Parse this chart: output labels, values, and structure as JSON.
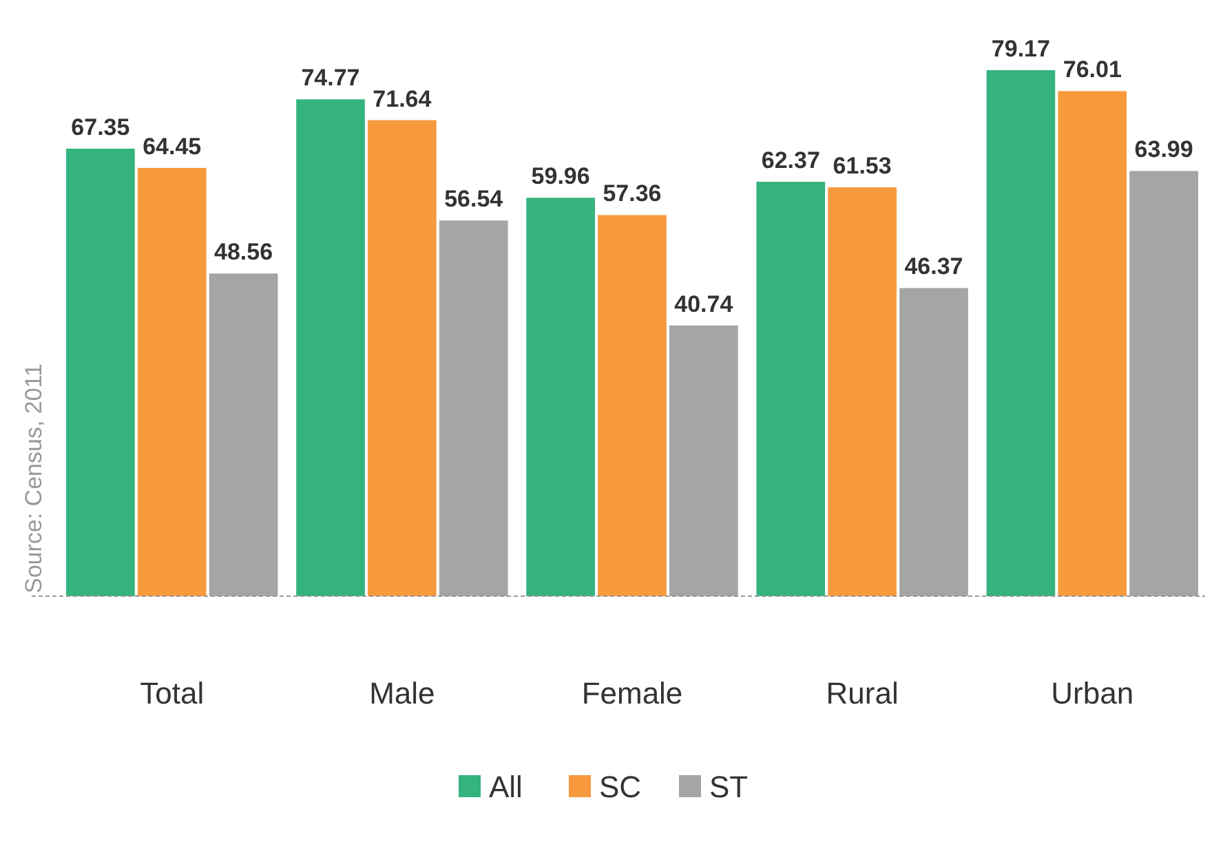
{
  "chart_data": {
    "type": "bar",
    "categories": [
      "Total",
      "Male",
      "Female",
      "Rural",
      "Urban"
    ],
    "series": [
      {
        "name": "All",
        "color": "#35b37e",
        "values": [
          67.35,
          74.77,
          59.96,
          62.37,
          79.17
        ]
      },
      {
        "name": "SC",
        "color": "#f79a3e",
        "values": [
          64.45,
          71.64,
          57.36,
          61.53,
          76.01
        ]
      },
      {
        "name": "ST",
        "color": "#a5a5a5",
        "values": [
          48.56,
          56.54,
          40.74,
          46.37,
          63.99
        ]
      }
    ],
    "tick_labels": "x",
    "data_labels": true,
    "legend": "bottom",
    "grid": false,
    "annotations": [
      "Source:  Census, 2011"
    ]
  }
}
